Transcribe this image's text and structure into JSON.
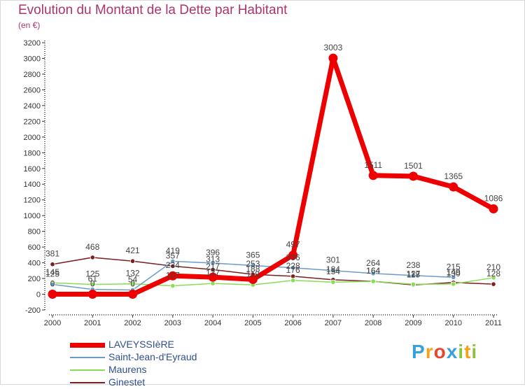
{
  "chart_data": {
    "type": "line",
    "title": "Evolution du Montant de la Dette par Habitant",
    "subtitle": "(en €)",
    "xlabel": "",
    "ylabel": "",
    "x": [
      "2000",
      "2001",
      "2002",
      "2003",
      "2004",
      "2005",
      "2006",
      "2007",
      "2008",
      "2009",
      "2010",
      "2011"
    ],
    "ylim": [
      -200,
      3200
    ],
    "yticks": [
      -200,
      0,
      200,
      400,
      600,
      800,
      1000,
      1200,
      1400,
      1600,
      1800,
      2000,
      2200,
      2400,
      2600,
      2800,
      3000,
      3200
    ],
    "grid": false,
    "legend_position": "bottom-left",
    "series": [
      {
        "name": "LAVEYSSIèRE",
        "color": "#ee0000",
        "values": [
          0,
          0,
          0,
          234,
          217,
          188,
          497,
          3003,
          1511,
          1501,
          1365,
          1086
        ],
        "labels": [
          "0",
          "0",
          "0",
          "234",
          "217",
          "188",
          "497",
          "3003",
          "1511",
          "1501",
          "1365",
          "1086"
        ]
      },
      {
        "name": "Saint-Jean-d'Eyraud",
        "color": "#6a9ccb",
        "values": [
          125,
          61,
          54,
          419,
          396,
          365,
          336,
          301,
          264,
          238,
          215,
          null
        ],
        "labels": [
          "125",
          "61",
          "54",
          "419",
          "396",
          "365",
          "336",
          "301",
          "264",
          "238",
          "215",
          ""
        ]
      },
      {
        "name": "Maurens",
        "color": "#88dd55",
        "values": [
          145,
          125,
          132,
          107,
          137,
          119,
          176,
          154,
          164,
          127,
          130,
          210
        ],
        "labels": [
          "145",
          "125",
          "132",
          "107",
          "137",
          "119",
          "176",
          "154",
          "164",
          "127",
          "130",
          "210"
        ]
      },
      {
        "name": "Ginestet",
        "color": "#7a2020",
        "values": [
          381,
          468,
          421,
          357,
          313,
          253,
          228,
          184,
          164,
          118,
          149,
          128
        ],
        "labels": [
          "381",
          "468",
          "421",
          "357",
          "313",
          "253",
          "228",
          "184",
          "164",
          "118",
          "149",
          "128"
        ]
      }
    ]
  },
  "legend": [
    {
      "label": "LAVEYSSIèRE",
      "color": "#ee0000"
    },
    {
      "label": "Saint-Jean-d'Eyraud",
      "color": "#6a9ccb"
    },
    {
      "label": "Maurens",
      "color": "#88dd55"
    },
    {
      "label": "Ginestet",
      "color": "#7a2020"
    }
  ],
  "brand": {
    "letters": [
      "P",
      "r",
      "o",
      "x",
      "i",
      "t",
      "i"
    ],
    "colors": [
      "#3aa0dd",
      "#f7a11a",
      "#e8462e",
      "#3aa0dd",
      "#8ac43f",
      "#f7a11a",
      "#8ac43f"
    ]
  }
}
